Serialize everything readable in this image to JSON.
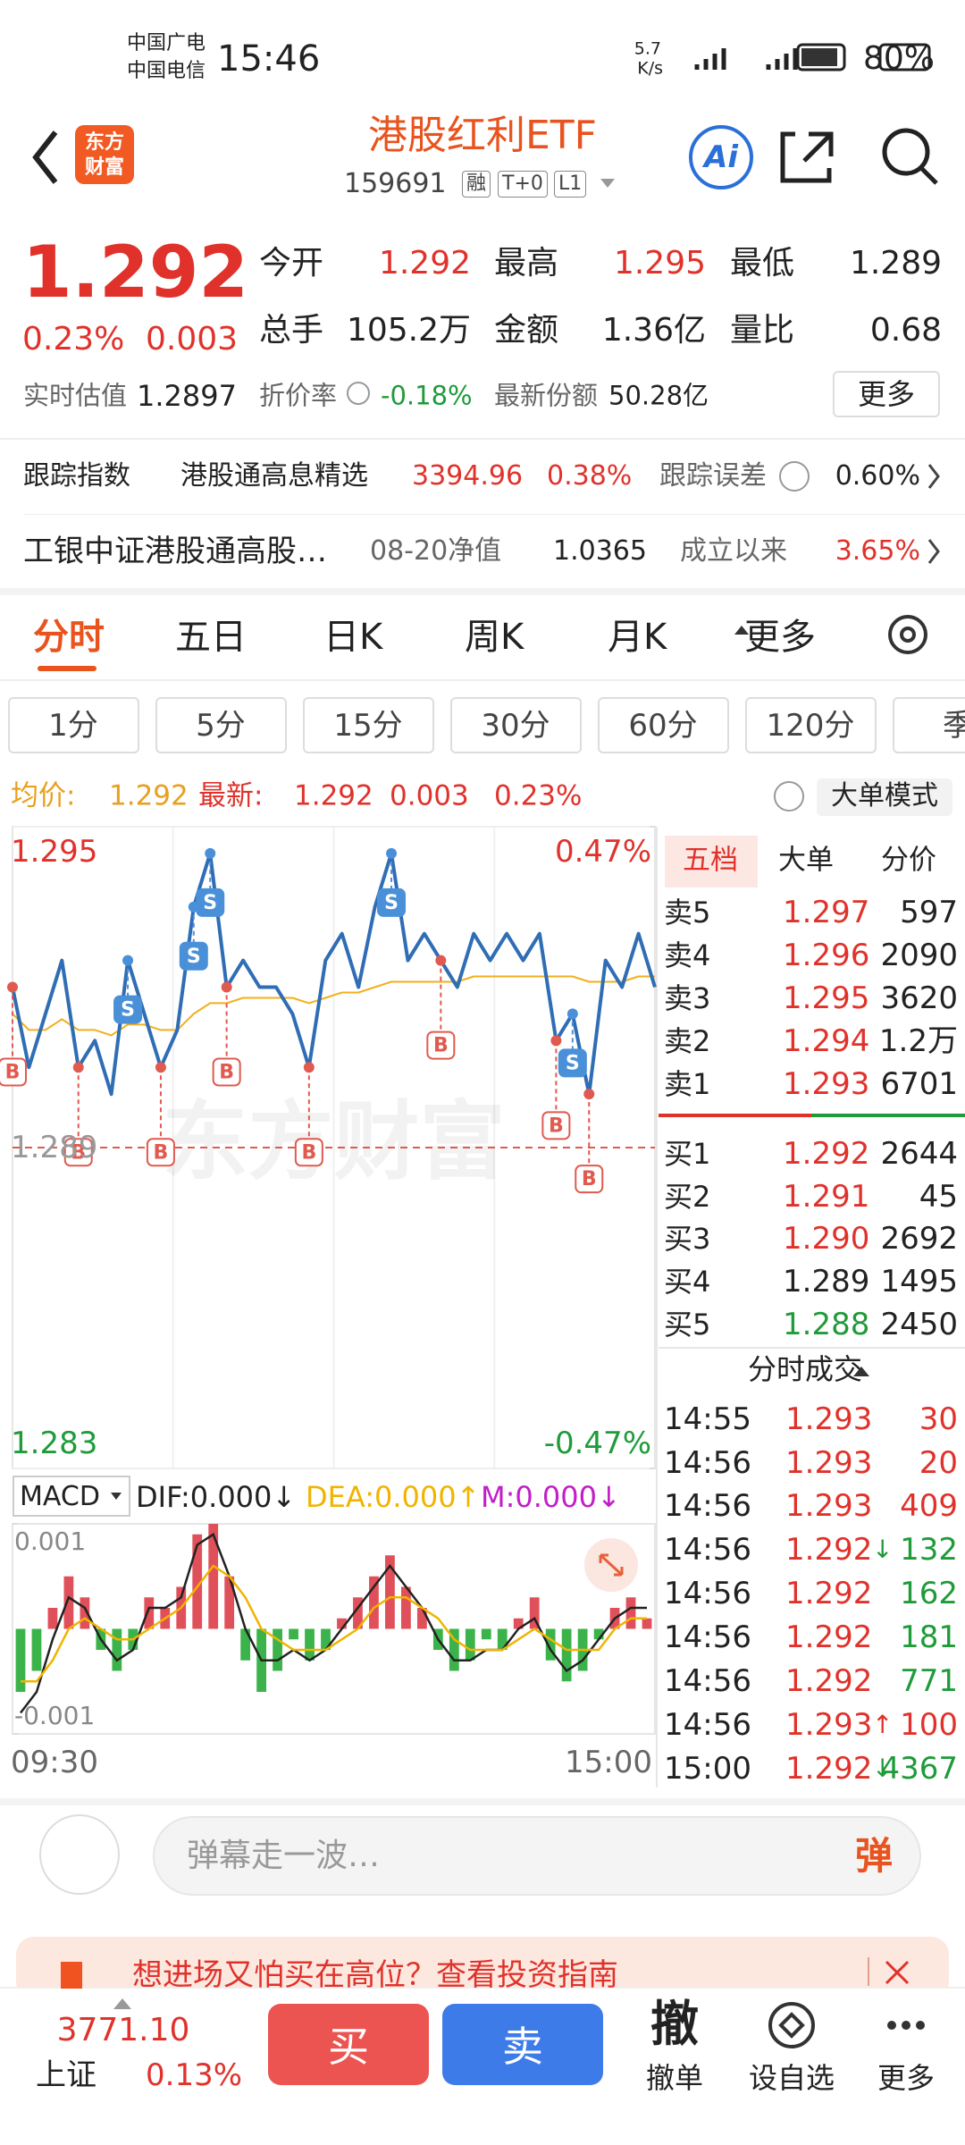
{
  "status_bar": {
    "carriers": [
      "中国广电",
      "中国电信"
    ],
    "time": "15:46",
    "speed": "5.7",
    "speed_unit": "K/s",
    "battery": "80%"
  },
  "header": {
    "logo": [
      "东方",
      "财富"
    ],
    "title": "港股红利ETF",
    "code": "159691",
    "badges": [
      "融",
      "T+0",
      "L1"
    ],
    "ai": "Ai"
  },
  "quote": {
    "price": "1.292",
    "change_pct": "0.23%",
    "change": "0.003",
    "fields": [
      {
        "label": "今开",
        "value": "1.292",
        "color": "#e0322b"
      },
      {
        "label": "最高",
        "value": "1.295",
        "color": "#e0322b"
      },
      {
        "label": "最低",
        "value": "1.289",
        "color": "#222222"
      },
      {
        "label": "总手",
        "value": "105.2万",
        "color": "#222222"
      },
      {
        "label": "金额",
        "value": "1.36亿",
        "color": "#222222"
      },
      {
        "label": "量比",
        "value": "0.68",
        "color": "#222222"
      }
    ],
    "estimate_label": "实时估值",
    "estimate": "1.2897",
    "discount_label": "折价率",
    "discount": "-0.18%",
    "shares_label": "最新份额",
    "shares": "50.28亿",
    "more": "更多"
  },
  "tracking": {
    "label": "跟踪指数",
    "index": "港股通高息精选",
    "value": "3394.96",
    "pct": "0.38%",
    "error_label": "跟踪误差",
    "error": "0.60%"
  },
  "fund": {
    "name": "工银中证港股通高股…",
    "nav_label": "08-20净值",
    "nav": "1.0365",
    "since_label": "成立以来",
    "since": "3.65%"
  },
  "tabs": [
    "分时",
    "五日",
    "日K",
    "周K",
    "月K",
    "更多"
  ],
  "periods": [
    "1分",
    "5分",
    "15分",
    "30分",
    "60分",
    "120分",
    "季"
  ],
  "avg_row": {
    "avg_label": "均价:",
    "avg": "1.292",
    "latest_label": "最新:",
    "latest": "1.292",
    "change": "0.003",
    "pct": "0.23%",
    "mode": "大单模式"
  },
  "chart_data": [
    {
      "type": "line",
      "ylim": [
        1.283,
        1.295
      ],
      "yticks": [
        1.283,
        1.289,
        1.295
      ],
      "y2lim": [
        -0.47,
        0.47
      ],
      "y2ticks": [
        {
          "value": -0.47,
          "label": "-0.47%"
        },
        {
          "value": 0.47,
          "label": "0.47%"
        }
      ],
      "series": [
        {
          "color": "#2f6db5",
          "values": [
            1.292,
            1.2905,
            1.2915,
            1.2925,
            1.2905,
            1.291,
            1.29,
            1.2925,
            1.2915,
            1.2905,
            1.2912,
            1.2935,
            1.2945,
            1.292,
            1.2925,
            1.292,
            1.292,
            1.2915,
            1.2905,
            1.2925,
            1.293,
            1.292,
            1.2935,
            1.2945,
            1.2925,
            1.293,
            1.2925,
            1.292,
            1.293,
            1.2925,
            1.293,
            1.2925,
            1.293,
            1.291,
            1.2915,
            1.29,
            1.2925,
            1.292,
            1.293,
            1.292
          ]
        },
        {
          "color": "#f2b01e",
          "values": [
            1.2915,
            1.2912,
            1.2912,
            1.2914,
            1.2912,
            1.2912,
            1.2911,
            1.2913,
            1.2913,
            1.2912,
            1.2912,
            1.2915,
            1.2917,
            1.2917,
            1.2918,
            1.2918,
            1.2918,
            1.2918,
            1.2917,
            1.2918,
            1.2919,
            1.2919,
            1.292,
            1.2921,
            1.2921,
            1.2921,
            1.2921,
            1.2921,
            1.2922,
            1.2922,
            1.2922,
            1.2922,
            1.2922,
            1.2922,
            1.2922,
            1.2921,
            1.2921,
            1.2921,
            1.2922,
            1.2922
          ]
        }
      ],
      "markers": [
        {
          "label": "B",
          "i": 0,
          "v": 1.292
        },
        {
          "label": "B",
          "i": 4,
          "v": 1.2905
        },
        {
          "label": "S",
          "i": 7,
          "v": 1.2925
        },
        {
          "label": "B",
          "i": 9,
          "v": 1.2905
        },
        {
          "label": "S",
          "i": 11,
          "v": 1.2935
        },
        {
          "label": "S",
          "i": 12,
          "v": 1.2945
        },
        {
          "label": "B",
          "i": 13,
          "v": 1.292
        },
        {
          "label": "B",
          "i": 18,
          "v": 1.2905
        },
        {
          "label": "S",
          "i": 23,
          "v": 1.2945
        },
        {
          "label": "B",
          "i": 26,
          "v": 1.2925
        },
        {
          "label": "B",
          "i": 33,
          "v": 1.291
        },
        {
          "label": "S",
          "i": 34,
          "v": 1.2915
        },
        {
          "label": "B",
          "i": 35,
          "v": 1.29
        }
      ],
      "time_labels": [
        "09:30",
        "15:00"
      ],
      "watermark": "东方财富"
    },
    {
      "type": "bar",
      "indicator": "MACD",
      "dif_label": "DIF:0.000↓",
      "dea_label": "DEA:0.000↑",
      "m_label": "M:0.000↓",
      "ylim": [
        -0.001,
        0.001
      ],
      "yticks": [
        -0.001,
        0.001
      ],
      "values": [
        -0.0006,
        -0.0004,
        0.0002,
        0.0005,
        0.0003,
        -0.0002,
        -0.0004,
        -0.0002,
        0.0003,
        0.0002,
        0.0004,
        0.0009,
        0.001,
        0.0005,
        -0.0003,
        -0.0006,
        -0.0004,
        -0.0001,
        -0.0003,
        -0.0002,
        0.0001,
        0.0003,
        0.0005,
        0.0007,
        0.0004,
        0.0002,
        -0.0002,
        -0.0004,
        -0.0003,
        -0.0001,
        -0.0002,
        0.0001,
        0.0003,
        -0.0003,
        -0.0005,
        -0.0004,
        -0.0001,
        0.0002,
        0.0003,
        0.0001
      ],
      "series": [
        {
          "color": "#222222",
          "values": [
            -0.0008,
            -0.0006,
            -0.0001,
            0.0003,
            0.0002,
            -0.0001,
            -0.0003,
            -0.0002,
            0.0002,
            0.0002,
            0.0003,
            0.0008,
            0.0009,
            0.0005,
            0.0,
            -0.0003,
            -0.0003,
            -0.0002,
            -0.0003,
            -0.0002,
            0.0,
            0.0002,
            0.0004,
            0.0006,
            0.0004,
            0.0002,
            -0.0001,
            -0.0003,
            -0.0003,
            -0.0002,
            -0.0002,
            0.0,
            0.0001,
            -0.0002,
            -0.0004,
            -0.0003,
            -0.0001,
            0.0001,
            0.0002,
            0.0002
          ]
        },
        {
          "color": "#f0b400",
          "values": [
            -0.0005,
            -0.0005,
            -0.0003,
            0.0,
            0.0001,
            0.0,
            -0.0001,
            -0.0001,
            0.0,
            0.0001,
            0.0002,
            0.0004,
            0.0006,
            0.0005,
            0.0003,
            0.0,
            -0.0001,
            -0.0002,
            -0.0002,
            -0.0002,
            -0.0001,
            0.0,
            0.0002,
            0.0003,
            0.0003,
            0.0002,
            0.0001,
            -0.0001,
            -0.0002,
            -0.0002,
            -0.0002,
            -0.0001,
            0.0,
            -0.0001,
            -0.0002,
            -0.0002,
            -0.0002,
            0.0,
            0.0001,
            0.0001
          ]
        }
      ]
    }
  ],
  "order_book": {
    "tabs": [
      "五档",
      "大单",
      "分价"
    ],
    "asks": [
      {
        "label": "卖5",
        "price": "1.297",
        "vol": "597",
        "color": "#e0322b"
      },
      {
        "label": "卖4",
        "price": "1.296",
        "vol": "2090",
        "color": "#e0322b"
      },
      {
        "label": "卖3",
        "price": "1.295",
        "vol": "3620",
        "color": "#e0322b"
      },
      {
        "label": "卖2",
        "price": "1.294",
        "vol": "1.2万",
        "color": "#e0322b"
      },
      {
        "label": "卖1",
        "price": "1.293",
        "vol": "6701",
        "color": "#e0322b"
      }
    ],
    "bids": [
      {
        "label": "买1",
        "price": "1.292",
        "vol": "2644",
        "color": "#e0322b"
      },
      {
        "label": "买2",
        "price": "1.291",
        "vol": "45",
        "color": "#e0322b"
      },
      {
        "label": "买3",
        "price": "1.290",
        "vol": "2692",
        "color": "#e0322b"
      },
      {
        "label": "买4",
        "price": "1.289",
        "vol": "1495",
        "color": "#222222"
      },
      {
        "label": "买5",
        "price": "1.288",
        "vol": "2450",
        "color": "#1f9b3a"
      }
    ]
  },
  "trades": {
    "title": "分时成交",
    "rows": [
      {
        "time": "14:55",
        "price": "1.293",
        "vol": "30",
        "color": "#e0322b"
      },
      {
        "time": "14:56",
        "price": "1.293",
        "vol": "20",
        "color": "#e0322b"
      },
      {
        "time": "14:56",
        "price": "1.293",
        "vol": "409",
        "color": "#e0322b"
      },
      {
        "time": "14:56",
        "price": "1.292",
        "dir": "↓",
        "vol": "132",
        "color": "#1f9b3a"
      },
      {
        "time": "14:56",
        "price": "1.292",
        "vol": "162",
        "color": "#1f9b3a"
      },
      {
        "time": "14:56",
        "price": "1.292",
        "vol": "181",
        "color": "#1f9b3a"
      },
      {
        "time": "14:56",
        "price": "1.292",
        "vol": "771",
        "color": "#1f9b3a"
      },
      {
        "time": "14:56",
        "price": "1.293",
        "dir": "↑",
        "vol": "100",
        "color": "#e0322b"
      },
      {
        "time": "15:00",
        "price": "1.292",
        "dir": "↓",
        "vol": "4367",
        "color": "#1f9b3a"
      }
    ]
  },
  "comment": {
    "placeholder": "弹幕走一波…",
    "button": "弹"
  },
  "ad": {
    "text": "想进场又怕买在高位？查看投资指南"
  },
  "bottom_bar": {
    "index_value": "3771.10",
    "index_name": "上证",
    "index_pct": "0.13%",
    "buy": "买",
    "sell": "卖",
    "cancel_icon": "撤",
    "cancel": "撤单",
    "watch": "设自选",
    "more": "更多"
  }
}
